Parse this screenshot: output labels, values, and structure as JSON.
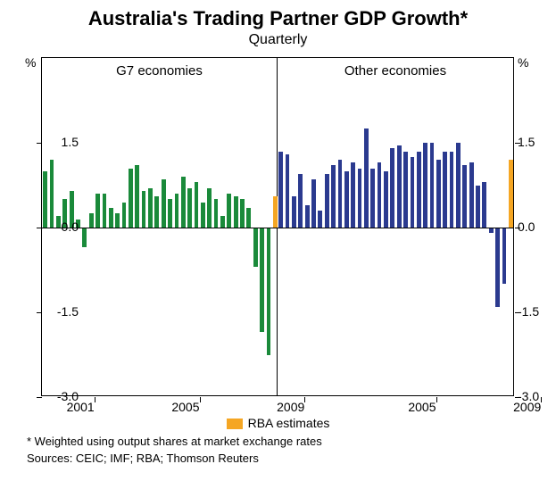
{
  "title": "Australia's Trading Partner GDP Growth*",
  "subtitle": "Quarterly",
  "chart": {
    "ylim": [
      -3.0,
      3.0
    ],
    "ytick_step": 1.5,
    "y_ticks": [
      -3.0,
      -1.5,
      0.0,
      1.5
    ],
    "y_unit": "%",
    "zero": 0.0,
    "background_color": "#ffffff",
    "axis_color": "#000000",
    "label_fontsize": 14,
    "title_fontsize": 22,
    "subtitle_fontsize": 16,
    "bar_gap_ratio": 0.35,
    "panels": [
      {
        "label": "G7 economies",
        "bar_color": "#1a8a3a",
        "estimate_color": "#f5a623",
        "x_ticks_years": [
          2001,
          2005,
          2009
        ],
        "start_year": 2000,
        "values": [
          1.0,
          1.2,
          0.2,
          0.5,
          0.65,
          0.15,
          -0.35,
          0.25,
          0.6,
          0.6,
          0.35,
          0.25,
          0.45,
          1.05,
          1.1,
          0.65,
          0.7,
          0.55,
          0.85,
          0.5,
          0.6,
          0.9,
          0.7,
          0.8,
          0.45,
          0.7,
          0.5,
          0.2,
          0.6,
          0.55,
          0.5,
          0.35,
          -0.7,
          -1.85,
          -2.25
        ],
        "estimates": [
          0.55
        ]
      },
      {
        "label": "Other economies",
        "bar_color": "#2b3a8f",
        "estimate_color": "#f5a623",
        "x_ticks_years": [
          2005,
          2009
        ],
        "start_year": 2000,
        "values": [
          1.35,
          1.3,
          0.55,
          0.95,
          0.4,
          0.85,
          0.3,
          0.95,
          1.1,
          1.2,
          1.0,
          1.15,
          1.05,
          1.75,
          1.05,
          1.15,
          1.0,
          1.4,
          1.45,
          1.35,
          1.25,
          1.35,
          1.5,
          1.5,
          1.2,
          1.35,
          1.35,
          1.5,
          1.1,
          1.15,
          0.75,
          0.8,
          -0.1,
          -1.4,
          -1.0
        ],
        "estimates": [
          1.2
        ]
      }
    ]
  },
  "legend": {
    "swatch_color": "#f5a623",
    "label": "RBA estimates"
  },
  "footnote": "*   Weighted using output shares at market exchange rates",
  "sources": "Sources: CEIC; IMF; RBA; Thomson Reuters"
}
